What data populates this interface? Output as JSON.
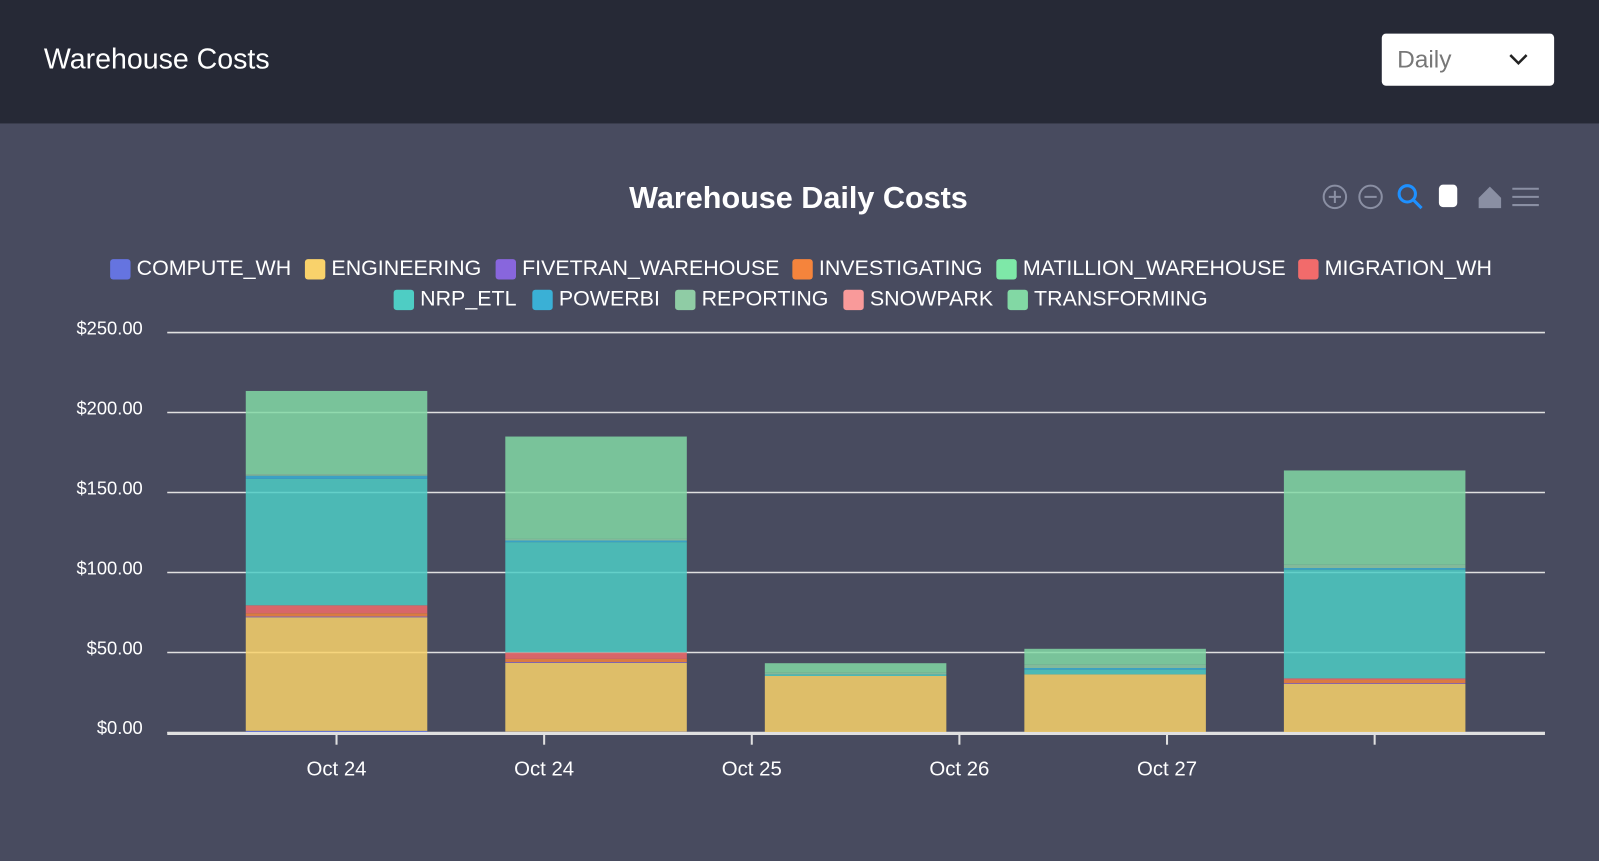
{
  "header": {
    "title": "Warehouse Costs",
    "dropdown": "Daily"
  },
  "chart_data": {
    "type": "bar",
    "stacked": true,
    "title": "Warehouse Daily Costs",
    "categories": [
      null,
      null,
      null,
      null,
      null
    ],
    "x_labels": [
      "Oct 24",
      "Oct 24",
      "Oct 25",
      "Oct 26",
      "Oct 27"
    ],
    "ylim": [
      0,
      250
    ],
    "yticks": [
      {
        "value": 0,
        "label": "$0.00"
      },
      {
        "value": 50,
        "label": "$50.00"
      },
      {
        "value": 100,
        "label": "$100.00"
      },
      {
        "value": 150,
        "label": "$150.00"
      },
      {
        "value": 200,
        "label": "$200.00"
      },
      {
        "value": 250,
        "label": "$250.00"
      }
    ],
    "grid": true,
    "series": [
      {
        "name": "COMPUTE_WH",
        "color": "#6574e0",
        "values": [
          1,
          0.5,
          0.3,
          0.3,
          0.3
        ]
      },
      {
        "name": "ENGINEERING",
        "color": "#f9d26b",
        "values": [
          71,
          43,
          35,
          36,
          30
        ]
      },
      {
        "name": "FIVETRAN_WAREHOUSE",
        "color": "#8866dd",
        "values": [
          0.5,
          0.5,
          0,
          0,
          0.5
        ]
      },
      {
        "name": "INVESTIGATING",
        "color": "#f5843c",
        "values": [
          2,
          2,
          0,
          0,
          2
        ]
      },
      {
        "name": "MATILLION_WAREHOUSE",
        "color": "#7ee8a8",
        "values": [
          0,
          0,
          0,
          0,
          0
        ]
      },
      {
        "name": "MIGRATION_WH",
        "color": "#f26b6b",
        "values": [
          5,
          4,
          0,
          0,
          1
        ]
      },
      {
        "name": "NRP_ETL",
        "color": "#4ecdc4",
        "values": [
          79,
          69,
          1,
          3,
          68
        ]
      },
      {
        "name": "POWERBI",
        "color": "#3ab0d6",
        "values": [
          2,
          1,
          0,
          1,
          1
        ]
      },
      {
        "name": "REPORTING",
        "color": "#8fcca5",
        "values": [
          1,
          1,
          1,
          2,
          2
        ]
      },
      {
        "name": "SNOWPARK",
        "color": "#f99a9a",
        "values": [
          0,
          0,
          0,
          0,
          0
        ]
      },
      {
        "name": "TRANSFORMING",
        "color": "#82d8a4",
        "values": [
          52,
          64,
          6,
          10,
          59
        ]
      }
    ]
  }
}
